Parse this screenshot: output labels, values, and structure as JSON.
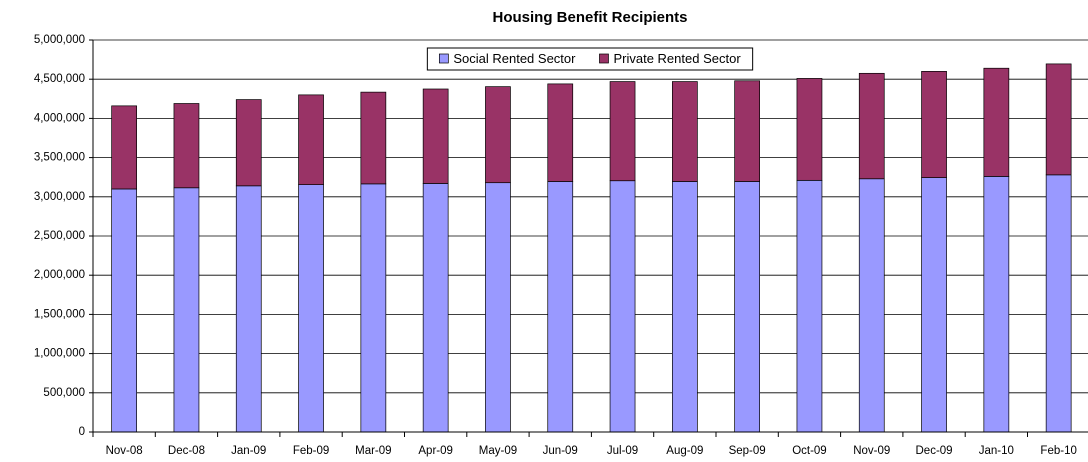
{
  "chart_data": {
    "type": "stacked_bar",
    "title": "Housing Benefit Recipients",
    "categories": [
      "Nov-08",
      "Dec-08",
      "Jan-09",
      "Feb-09",
      "Mar-09",
      "Apr-09",
      "May-09",
      "Jun-09",
      "Jul-09",
      "Aug-09",
      "Sep-09",
      "Oct-09",
      "Nov-09",
      "Dec-09",
      "Jan-10",
      "Feb-10"
    ],
    "series": [
      {
        "name": "Social Rented Sector",
        "color": "#9999ff",
        "values": [
          3100000,
          3115000,
          3140000,
          3155000,
          3165000,
          3170000,
          3180000,
          3195000,
          3205000,
          3195000,
          3195000,
          3210000,
          3230000,
          3245000,
          3260000,
          3280000
        ]
      },
      {
        "name": "Private Rented Sector",
        "color": "#993366",
        "values": [
          1060000,
          1075000,
          1100000,
          1145000,
          1170000,
          1205000,
          1225000,
          1245000,
          1265000,
          1275000,
          1285000,
          1300000,
          1345000,
          1355000,
          1380000,
          1415000
        ]
      }
    ],
    "ylim": [
      0,
      5000000
    ],
    "yticks": [
      0,
      {
        "value": 500000,
        "label": "500,000"
      },
      {
        "value": 1000000,
        "label": "1,000,000"
      },
      {
        "value": 1500000,
        "label": "1,500,000"
      },
      {
        "value": 2000000,
        "label": "2,000,000"
      },
      {
        "value": 2500000,
        "label": "2,500,000"
      },
      {
        "value": 3000000,
        "label": "3,000,000"
      },
      {
        "value": 3500000,
        "label": "3,500,000"
      },
      {
        "value": 4000000,
        "label": "4,000,000"
      },
      {
        "value": 4500000,
        "label": "4,500,000"
      },
      {
        "value": 5000000,
        "label": "5,000,000"
      }
    ],
    "grid": true,
    "legend": "top"
  }
}
